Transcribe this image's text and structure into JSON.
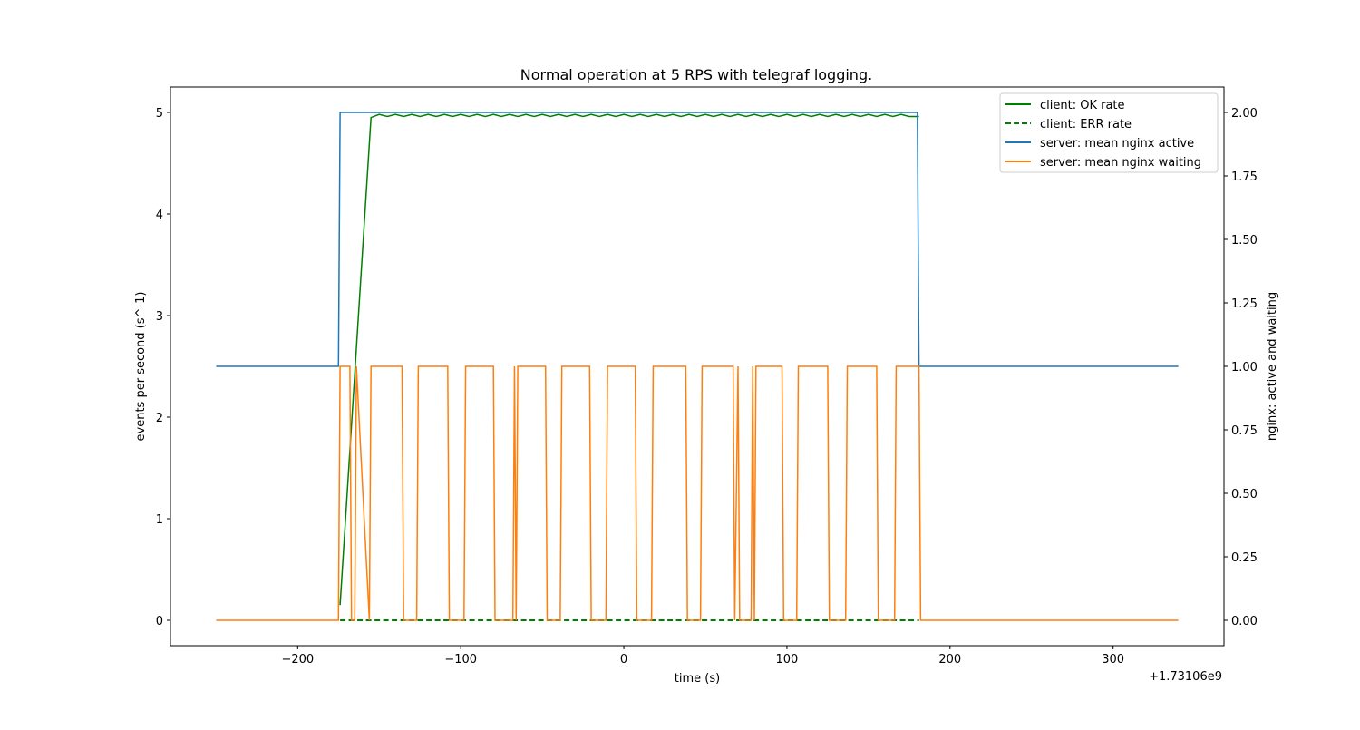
{
  "chart_data": {
    "type": "line",
    "title": "Normal operation at 5 RPS with telegraf logging.",
    "xlabel": "time (s)",
    "x_offset_label": "+1.73106e9",
    "ylabel_left": "events per second (s^-1)",
    "ylabel_right": "nginx: active and waiting",
    "xlim": [
      -278,
      368
    ],
    "ylim_left": [
      -0.25,
      5.25
    ],
    "ylim_right": [
      -0.1,
      2.1
    ],
    "x_ticks": [
      -200,
      -100,
      0,
      100,
      200,
      300
    ],
    "x_tick_labels": [
      "−200",
      "−100",
      "0",
      "100",
      "200",
      "300"
    ],
    "y_left_ticks": [
      0,
      1,
      2,
      3,
      4,
      5
    ],
    "y_left_tick_labels": [
      "0",
      "1",
      "2",
      "3",
      "4",
      "5"
    ],
    "y_right_ticks": [
      0,
      0.25,
      0.5,
      0.75,
      1.0,
      1.25,
      1.5,
      1.75,
      2.0
    ],
    "y_right_tick_labels": [
      "0.00",
      "0.25",
      "0.50",
      "0.75",
      "1.00",
      "1.25",
      "1.50",
      "1.75",
      "2.00"
    ],
    "grid": false,
    "legend_position": "top-right",
    "series": [
      {
        "name": "client: OK rate",
        "axis": "left",
        "color": "#008000",
        "dash": "solid",
        "x": [
          -174,
          -155,
          -150,
          -145,
          -140,
          -135,
          -130,
          -125,
          -120,
          -115,
          -110,
          -105,
          -100,
          -95,
          -90,
          -85,
          -80,
          -75,
          -70,
          -65,
          -60,
          -55,
          -50,
          -45,
          -40,
          -35,
          -30,
          -25,
          -20,
          -15,
          -10,
          -5,
          0,
          5,
          10,
          15,
          20,
          25,
          30,
          35,
          40,
          45,
          50,
          55,
          60,
          65,
          70,
          75,
          80,
          85,
          90,
          95,
          100,
          105,
          110,
          115,
          120,
          125,
          130,
          135,
          140,
          145,
          150,
          155,
          160,
          165,
          170,
          175,
          181
        ],
        "y": [
          0.15,
          4.95,
          4.98,
          4.96,
          4.98,
          4.96,
          4.98,
          4.96,
          4.98,
          4.96,
          4.98,
          4.96,
          4.98,
          4.96,
          4.98,
          4.96,
          4.98,
          4.96,
          4.98,
          4.96,
          4.98,
          4.96,
          4.98,
          4.96,
          4.98,
          4.96,
          4.98,
          4.96,
          4.98,
          4.96,
          4.98,
          4.96,
          4.98,
          4.96,
          4.98,
          4.96,
          4.98,
          4.96,
          4.98,
          4.96,
          4.98,
          4.96,
          4.98,
          4.96,
          4.98,
          4.96,
          4.98,
          4.96,
          4.98,
          4.96,
          4.98,
          4.96,
          4.98,
          4.96,
          4.98,
          4.96,
          4.98,
          4.96,
          4.98,
          4.96,
          4.98,
          4.96,
          4.98,
          4.96,
          4.98,
          4.96,
          4.98,
          4.96,
          4.96
        ]
      },
      {
        "name": "client: ERR rate",
        "axis": "left",
        "color": "#008000",
        "dash": "dashed",
        "x": [
          -174,
          181
        ],
        "y": [
          0,
          0
        ]
      },
      {
        "name": "server: mean nginx active",
        "axis": "right",
        "color": "#1f77b4",
        "dash": "solid",
        "x": [
          -250,
          -175,
          -174,
          180,
          181,
          340
        ],
        "y": [
          1,
          1,
          2,
          2,
          1,
          1
        ]
      },
      {
        "name": "server: mean nginx waiting",
        "axis": "right",
        "color": "#ff7f0e",
        "dash": "solid",
        "x": [
          -250,
          -175,
          -174,
          -168,
          -167,
          -165,
          -164,
          -156,
          -155,
          -136,
          -135,
          -127,
          -126,
          -108,
          -107,
          -98,
          -97,
          -80,
          -79,
          -68,
          -67,
          -66,
          -65,
          -48,
          -47,
          -39,
          -38,
          -21,
          -20,
          -11,
          -10,
          7,
          8,
          17,
          18,
          38,
          39,
          47,
          48,
          67,
          68,
          70,
          71,
          78,
          79,
          80,
          81,
          97,
          98,
          106,
          107,
          125,
          126,
          136,
          137,
          155,
          156,
          166,
          167,
          181,
          182,
          340
        ],
        "y": [
          0,
          0,
          1,
          1,
          0,
          0,
          1,
          0,
          1,
          1,
          0,
          0,
          1,
          1,
          0,
          0,
          1,
          1,
          0,
          0,
          1,
          0,
          1,
          1,
          0,
          0,
          1,
          1,
          0,
          0,
          1,
          1,
          0,
          0,
          1,
          1,
          0,
          0,
          1,
          1,
          0,
          1,
          0,
          0,
          1,
          0,
          1,
          1,
          0,
          0,
          1,
          1,
          0,
          0,
          1,
          1,
          0,
          0,
          1,
          1,
          0,
          0
        ]
      }
    ]
  }
}
